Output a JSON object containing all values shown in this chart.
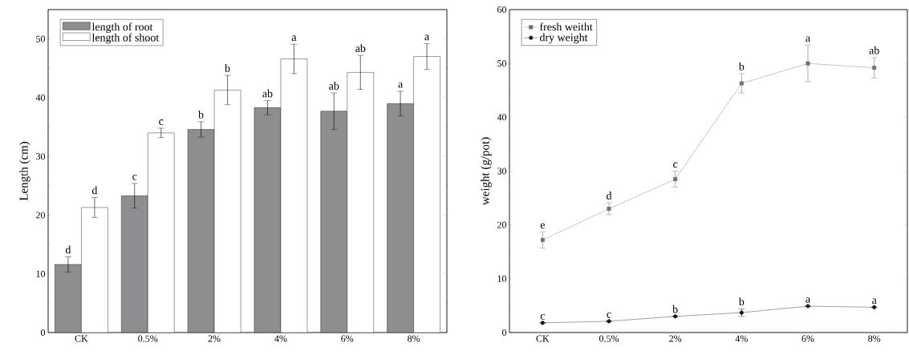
{
  "chart_data": [
    {
      "type": "bar",
      "ylabel": "Length (cm)",
      "categories": [
        "CK",
        "0.5%",
        "2%",
        "4%",
        "6%",
        "8%"
      ],
      "ylim": [
        0,
        55
      ],
      "yticks": [
        0,
        10,
        20,
        30,
        40,
        50
      ],
      "legend": "top left",
      "series": [
        {
          "name": "length of root",
          "color": "#8e8e90",
          "values": [
            11.6,
            23.3,
            34.6,
            38.3,
            37.7,
            39.0
          ],
          "errors": [
            1.3,
            2.1,
            1.3,
            1.2,
            3.1,
            2.1
          ],
          "value_labels": [
            "d",
            "c",
            "b",
            "ab",
            "ab",
            "a"
          ]
        },
        {
          "name": "length of shoot",
          "color": "#ffffff",
          "values": [
            21.3,
            34.0,
            41.3,
            46.6,
            44.3,
            47.0
          ],
          "errors": [
            1.7,
            0.8,
            2.5,
            2.5,
            2.9,
            2.2
          ],
          "value_labels": [
            "d",
            "c",
            "b",
            "a",
            "ab",
            "a"
          ]
        }
      ]
    },
    {
      "type": "line",
      "ylabel": "weight (g/pot)",
      "categories": [
        "CK",
        "0.5%",
        "2%",
        "4%",
        "6%",
        "8%"
      ],
      "ylim": [
        0,
        60
      ],
      "yticks": [
        0,
        10,
        20,
        30,
        40,
        50,
        60
      ],
      "legend": "top left",
      "line_style": "solid",
      "series": [
        {
          "name": "fresh weitht",
          "color": "#707070",
          "marker": "square",
          "values": [
            17.2,
            23.0,
            28.5,
            46.3,
            50.0,
            49.2
          ],
          "errors": [
            1.5,
            1.1,
            1.5,
            1.8,
            3.4,
            1.9
          ],
          "value_labels": [
            "e",
            "d",
            "c",
            "b",
            "a",
            "ab"
          ]
        },
        {
          "name": "dry weight",
          "color": "#111111",
          "marker": "circle",
          "values": [
            1.8,
            2.1,
            3.0,
            3.7,
            4.9,
            4.7
          ],
          "errors": [
            null,
            null,
            null,
            0.7,
            null,
            null
          ],
          "value_labels": [
            "c",
            "c",
            "b",
            "b",
            "a",
            "a"
          ]
        }
      ]
    }
  ]
}
